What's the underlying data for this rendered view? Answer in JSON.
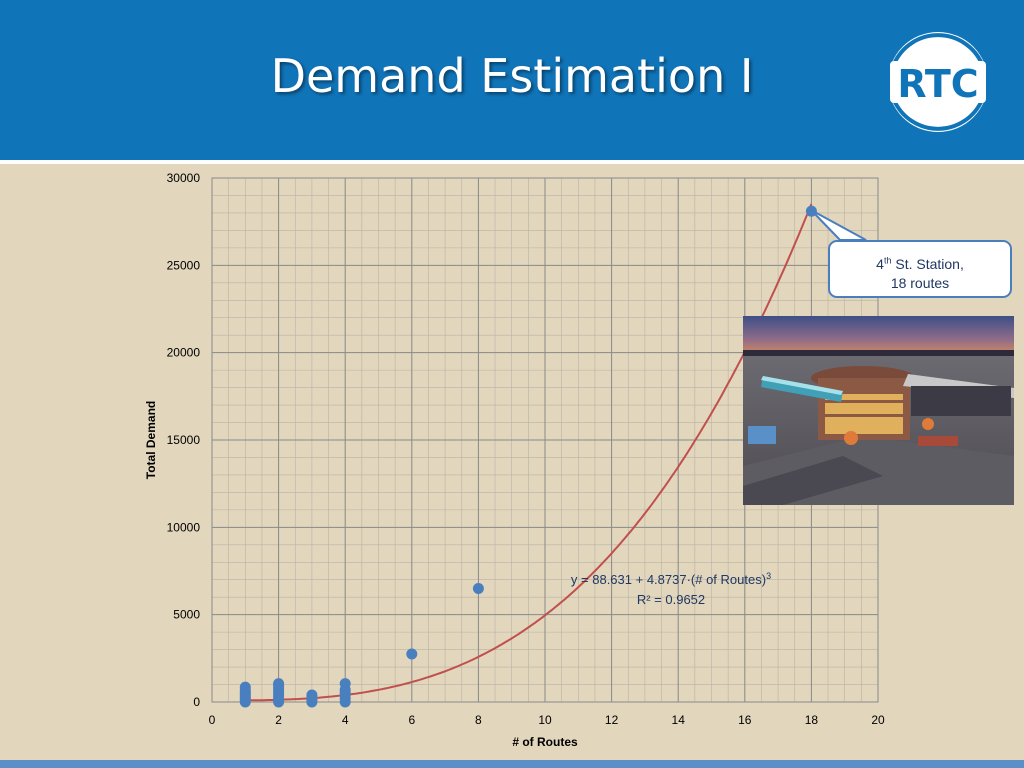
{
  "slide": {
    "title": "Demand Estimation I",
    "logo_text": "RTC",
    "colors": {
      "header": "#1074b8",
      "background": "#e2d6bd",
      "footer": "#5b8fc7",
      "points": "#4a7fbf",
      "fit_line": "#c0504d"
    }
  },
  "callout": {
    "line1_main": "4",
    "line1_sup": "th",
    "line1_rest": " St. Station,",
    "line2": "18 routes"
  },
  "photo": {
    "icon": "transit-station-photo"
  },
  "chart_data": {
    "type": "scatter",
    "xlabel": "# of Routes",
    "ylabel": "Total Demand",
    "xlim": [
      0,
      20
    ],
    "ylim": [
      0,
      30000
    ],
    "xticks": [
      0,
      2,
      4,
      6,
      8,
      10,
      12,
      14,
      16,
      18,
      20
    ],
    "yticks": [
      0,
      5000,
      10000,
      15000,
      20000,
      25000,
      30000
    ],
    "minor_grid": {
      "x_step": 0.5,
      "y_step": 1000
    },
    "grid": true,
    "series": [
      {
        "x": [
          1,
          1,
          1,
          1,
          1,
          1,
          1,
          1,
          1,
          2,
          2,
          2,
          2,
          2,
          2,
          2,
          2,
          2,
          3,
          3,
          3,
          3,
          3,
          4,
          4,
          4,
          4,
          4,
          4,
          6,
          8,
          18
        ],
        "y": [
          0,
          100,
          200,
          300,
          400,
          500,
          600,
          700,
          850,
          0,
          100,
          200,
          350,
          500,
          650,
          800,
          950,
          1050,
          0,
          100,
          200,
          300,
          400,
          0,
          200,
          400,
          550,
          700,
          1050,
          2750,
          6500,
          28100
        ]
      }
    ],
    "trendline": {
      "type": "cubic",
      "intercept": 88.631,
      "coef": 4.8737,
      "equation_main": "y = 88.631 + 4.8737·(# of Routes)",
      "equation_sup": "3",
      "r2": "R² = 0.9652"
    }
  }
}
